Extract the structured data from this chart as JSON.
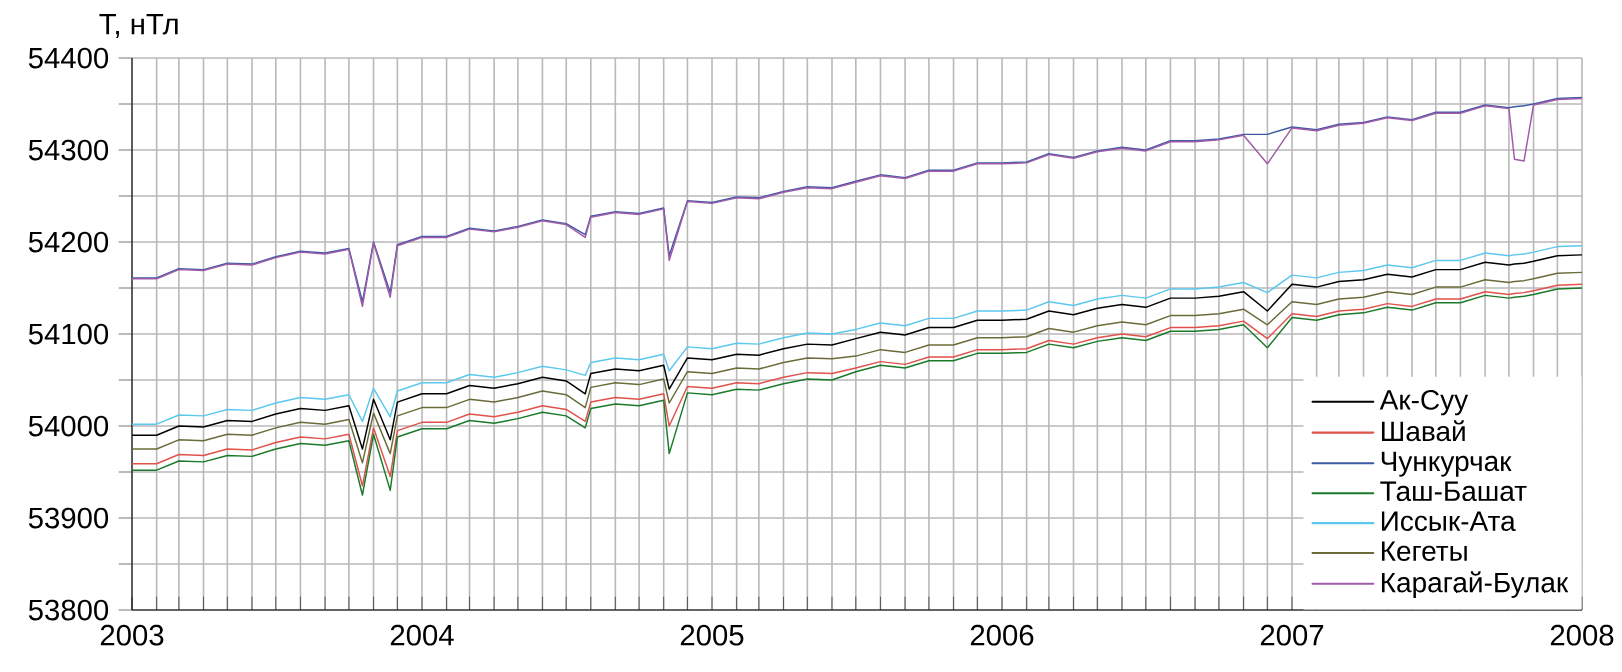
{
  "chart_data": {
    "type": "line",
    "ylabel": "T, нТл",
    "x": [
      "2003-01",
      "2003-02",
      "2003-03",
      "2003-04",
      "2003-05",
      "2003-06",
      "2003-07",
      "2003-08",
      "2003-09",
      "2003-10",
      "2003-10-18",
      "2003-11",
      "2003-11-22",
      "2003-12",
      "2004-01",
      "2004-02",
      "2004-03",
      "2004-04",
      "2004-05",
      "2004-06",
      "2004-07",
      "2004-07-25",
      "2004-08",
      "2004-09",
      "2004-10",
      "2004-11",
      "2004-11-08",
      "2004-12",
      "2005-01",
      "2005-02",
      "2005-03",
      "2005-04",
      "2005-05",
      "2005-06",
      "2005-07",
      "2005-08",
      "2005-09",
      "2005-10",
      "2005-11",
      "2005-12",
      "2006-01",
      "2006-02",
      "2006-03",
      "2006-04",
      "2006-05",
      "2006-06",
      "2006-07",
      "2006-08",
      "2006-09",
      "2006-10",
      "2006-11",
      "2006-12",
      "2007-01",
      "2007-02",
      "2007-03",
      "2007-04",
      "2007-05",
      "2007-06",
      "2007-07",
      "2007-08",
      "2007-09",
      "2007-10",
      "2007-10-08",
      "2007-10-20",
      "2007-11",
      "2007-12",
      "2008-01"
    ],
    "series": [
      {
        "name": "Ак-Суу",
        "color": "#000000",
        "values": [
          53990,
          53990,
          54000,
          53999,
          54006,
          54005,
          54013,
          54019,
          54017,
          54022,
          53975,
          54029,
          53985,
          54026,
          54035,
          54035,
          54044,
          54041,
          54046,
          54053,
          54049,
          54035,
          54057,
          54062,
          54060,
          54066,
          54040,
          54074,
          54072,
          54078,
          54077,
          54084,
          54089,
          54088,
          54095,
          54102,
          54099,
          54107,
          54107,
          54115,
          54115,
          54116,
          54125,
          54121,
          54128,
          54132,
          54129,
          54139,
          54139,
          54141,
          54146,
          54125,
          54154,
          54151,
          54157,
          54159,
          54165,
          54162,
          54170,
          54170,
          54178,
          54175,
          54176,
          54177,
          54179,
          54185,
          54186
        ]
      },
      {
        "name": "Шавай",
        "color": "#e0524a",
        "values": [
          53959,
          53959,
          53969,
          53968,
          53975,
          53974,
          53982,
          53988,
          53986,
          53991,
          53935,
          53998,
          53945,
          53995,
          54004,
          54004,
          54013,
          54010,
          54015,
          54022,
          54018,
          54005,
          54026,
          54031,
          54029,
          54035,
          54000,
          54043,
          54041,
          54047,
          54046,
          54053,
          54058,
          54057,
          54063,
          54070,
          54067,
          54075,
          54075,
          54083,
          54083,
          54084,
          54093,
          54089,
          54096,
          54100,
          54097,
          54107,
          54107,
          54109,
          54114,
          54095,
          54122,
          54119,
          54125,
          54127,
          54133,
          54130,
          54138,
          54138,
          54146,
          54143,
          54144,
          54145,
          54147,
          54153,
          54154
        ]
      },
      {
        "name": "Чункурчак",
        "color": "#3b5ba5",
        "values": [
          54161,
          54161,
          54171,
          54170,
          54177,
          54176,
          54184,
          54190,
          54188,
          54193,
          54135,
          54200,
          54145,
          54197,
          54206,
          54206,
          54215,
          54212,
          54217,
          54224,
          54220,
          54208,
          54228,
          54233,
          54231,
          54237,
          54185,
          54245,
          54243,
          54249,
          54248,
          54255,
          54260,
          54259,
          54266,
          54273,
          54270,
          54278,
          54278,
          54286,
          54286,
          54287,
          54296,
          54292,
          54299,
          54303,
          54300,
          54310,
          54310,
          54312,
          54317,
          54317,
          54325,
          54322,
          54328,
          54330,
          54336,
          54333,
          54341,
          54341,
          54349,
          54346,
          54347,
          54348,
          54350,
          54356,
          54357
        ]
      },
      {
        "name": "Таш-Башат",
        "color": "#1a7a2a",
        "values": [
          53952,
          53952,
          53962,
          53961,
          53968,
          53967,
          53975,
          53981,
          53979,
          53984,
          53925,
          53991,
          53930,
          53988,
          53997,
          53997,
          54006,
          54003,
          54008,
          54015,
          54011,
          53998,
          54019,
          54024,
          54022,
          54028,
          53970,
          54036,
          54034,
          54040,
          54039,
          54046,
          54051,
          54050,
          54059,
          54066,
          54063,
          54071,
          54071,
          54079,
          54079,
          54080,
          54089,
          54085,
          54092,
          54096,
          54093,
          54103,
          54103,
          54105,
          54110,
          54085,
          54118,
          54115,
          54121,
          54123,
          54129,
          54126,
          54134,
          54134,
          54142,
          54139,
          54140,
          54141,
          54143,
          54149,
          54150
        ]
      },
      {
        "name": "Иссык-Ата",
        "color": "#5bc8ee",
        "values": [
          54002,
          54002,
          54012,
          54011,
          54018,
          54017,
          54025,
          54031,
          54029,
          54034,
          54005,
          54041,
          54010,
          54038,
          54047,
          54047,
          54056,
          54053,
          54058,
          54065,
          54061,
          54055,
          54069,
          54074,
          54072,
          54078,
          54060,
          54086,
          54084,
          54090,
          54089,
          54096,
          54101,
          54100,
          54105,
          54112,
          54109,
          54117,
          54117,
          54125,
          54125,
          54126,
          54135,
          54131,
          54138,
          54142,
          54139,
          54149,
          54149,
          54151,
          54156,
          54145,
          54164,
          54161,
          54167,
          54169,
          54175,
          54172,
          54180,
          54180,
          54188,
          54185,
          54186,
          54187,
          54189,
          54195,
          54196
        ]
      },
      {
        "name": "Кегеты",
        "color": "#6b6b3a",
        "values": [
          53975,
          53975,
          53985,
          53984,
          53991,
          53990,
          53998,
          54004,
          54002,
          54007,
          53960,
          54014,
          53970,
          54011,
          54020,
          54020,
          54029,
          54026,
          54031,
          54038,
          54034,
          54020,
          54042,
          54047,
          54045,
          54051,
          54025,
          54059,
          54057,
          54063,
          54062,
          54069,
          54074,
          54073,
          54076,
          54083,
          54080,
          54088,
          54088,
          54096,
          54096,
          54097,
          54106,
          54102,
          54109,
          54113,
          54110,
          54120,
          54120,
          54122,
          54127,
          54110,
          54135,
          54132,
          54138,
          54140,
          54146,
          54143,
          54151,
          54151,
          54159,
          54156,
          54157,
          54158,
          54160,
          54166,
          54167
        ]
      },
      {
        "name": "Карагай-Булак",
        "color": "#a05aa8",
        "values": [
          54160,
          54160,
          54170,
          54169,
          54176,
          54175,
          54183,
          54189,
          54187,
          54192,
          54130,
          54199,
          54140,
          54196,
          54205,
          54205,
          54214,
          54211,
          54216,
          54223,
          54219,
          54205,
          54227,
          54232,
          54230,
          54236,
          54180,
          54244,
          54242,
          54248,
          54247,
          54254,
          54259,
          54258,
          54265,
          54272,
          54269,
          54277,
          54277,
          54285,
          54285,
          54286,
          54295,
          54291,
          54298,
          54302,
          54299,
          54309,
          54309,
          54311,
          54316,
          54285,
          54324,
          54321,
          54327,
          54329,
          54335,
          54332,
          54340,
          54340,
          54348,
          54345,
          54290,
          54288,
          54349,
          54355,
          54356
        ]
      }
    ],
    "xlim": [
      "2003-01-01",
      "2008-01-01"
    ],
    "xticks": [
      "2003",
      {
        "value": "2003-02",
        "label": null
      },
      {
        "value": "2003-03",
        "label": null
      },
      {
        "value": "2003-04",
        "label": null
      },
      {
        "value": "2003-05",
        "label": null
      },
      {
        "value": "2003-06",
        "label": null
      },
      {
        "value": "2003-07",
        "label": null
      },
      {
        "value": "2003-08",
        "label": null
      },
      {
        "value": "2003-09",
        "label": null
      },
      {
        "value": "2003-10",
        "label": null
      },
      {
        "value": "2003-11",
        "label": null
      },
      {
        "value": "2003-12",
        "label": null
      },
      "2004",
      {
        "value": "2004-02",
        "label": null
      },
      {
        "value": "2004-03",
        "label": null
      },
      {
        "value": "2004-04",
        "label": null
      },
      {
        "value": "2004-05",
        "label": null
      },
      {
        "value": "2004-06",
        "label": null
      },
      {
        "value": "2004-07",
        "label": null
      },
      {
        "value": "2004-08",
        "label": null
      },
      {
        "value": "2004-09",
        "label": null
      },
      {
        "value": "2004-10",
        "label": null
      },
      {
        "value": "2004-11",
        "label": null
      },
      {
        "value": "2004-12",
        "label": null
      },
      "2005",
      {
        "value": "2005-02",
        "label": null
      },
      {
        "value": "2005-03",
        "label": null
      },
      {
        "value": "2005-04",
        "label": null
      },
      {
        "value": "2005-05",
        "label": null
      },
      {
        "value": "2005-06",
        "label": null
      },
      {
        "value": "2005-07",
        "label": null
      },
      {
        "value": "2005-08",
        "label": null
      },
      {
        "value": "2005-09",
        "label": null
      },
      {
        "value": "2005-10",
        "label": null
      },
      {
        "value": "2005-11",
        "label": null
      },
      {
        "value": "2005-12",
        "label": null
      },
      "2006",
      {
        "value": "2006-02",
        "label": null
      },
      {
        "value": "2006-03",
        "label": null
      },
      {
        "value": "2006-04",
        "label": null
      },
      {
        "value": "2006-05",
        "label": null
      },
      {
        "value": "2006-06",
        "label": null
      },
      {
        "value": "2006-07",
        "label": null
      },
      {
        "value": "2006-08",
        "label": null
      },
      {
        "value": "2006-09",
        "label": null
      },
      {
        "value": "2006-10",
        "label": null
      },
      {
        "value": "2006-11",
        "label": null
      },
      {
        "value": "2006-12",
        "label": null
      },
      "2007",
      {
        "value": "2007-02",
        "label": null
      },
      {
        "value": "2007-03",
        "label": null
      },
      {
        "value": "2007-04",
        "label": null
      },
      {
        "value": "2007-05",
        "label": null
      },
      {
        "value": "2007-06",
        "label": null
      },
      {
        "value": "2007-07",
        "label": null
      },
      {
        "value": "2007-08",
        "label": null
      },
      {
        "value": "2007-09",
        "label": null
      },
      {
        "value": "2007-10",
        "label": null
      },
      {
        "value": "2007-11",
        "label": null
      },
      {
        "value": "2007-12",
        "label": null
      },
      "2008"
    ],
    "ylim": [
      53800,
      54400
    ],
    "yticks": [
      53800,
      {
        "value": 53850,
        "label": null
      },
      53900,
      {
        "value": 53950,
        "label": null
      },
      54000,
      {
        "value": 54050,
        "label": null
      },
      54100,
      {
        "value": 54150,
        "label": null
      },
      54200,
      {
        "value": 54250,
        "label": null
      },
      54300,
      {
        "value": 54350,
        "label": null
      },
      54400
    ],
    "grid": true,
    "legend": "bottom right"
  }
}
